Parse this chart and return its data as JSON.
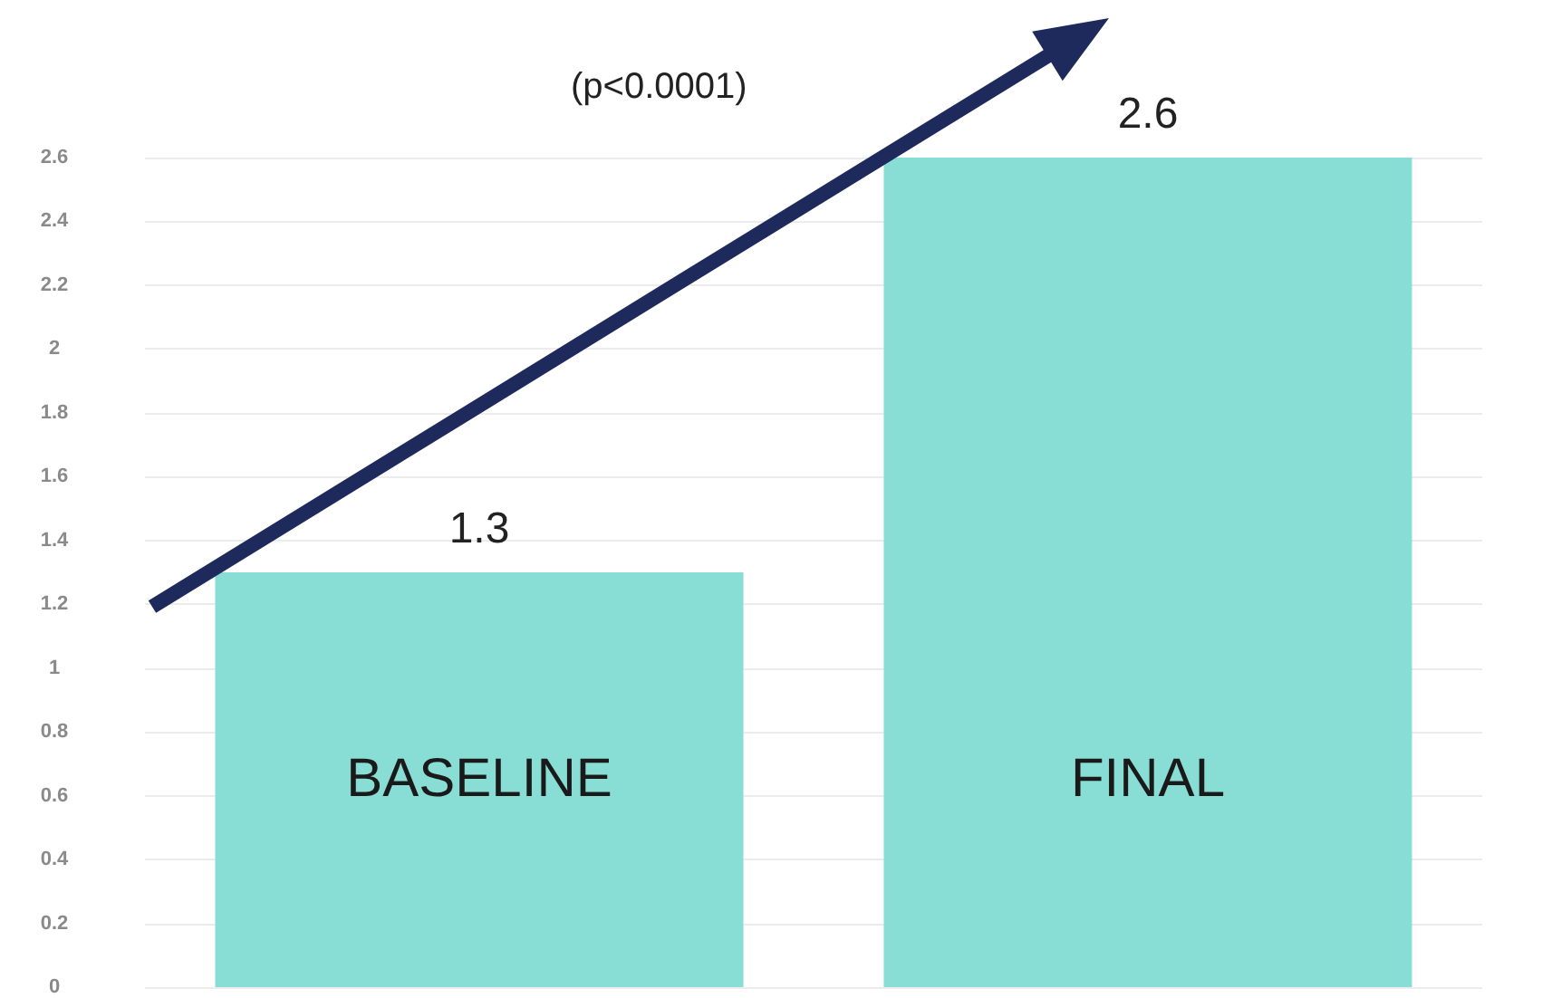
{
  "chart_data": {
    "type": "bar",
    "categories": [
      "BASELINE",
      "FINAL"
    ],
    "values": [
      1.3,
      2.6
    ],
    "color": "#88ddd4",
    "ylim": [
      0,
      2.6
    ],
    "yticks": [
      0,
      0.2,
      0.4,
      0.6,
      0.8,
      1,
      1.2,
      1.4,
      1.6,
      1.8,
      2,
      2.2,
      2.4,
      2.6
    ],
    "grid": "y",
    "data_labels": true,
    "annotations": [
      "(p<0.0001)"
    ]
  }
}
